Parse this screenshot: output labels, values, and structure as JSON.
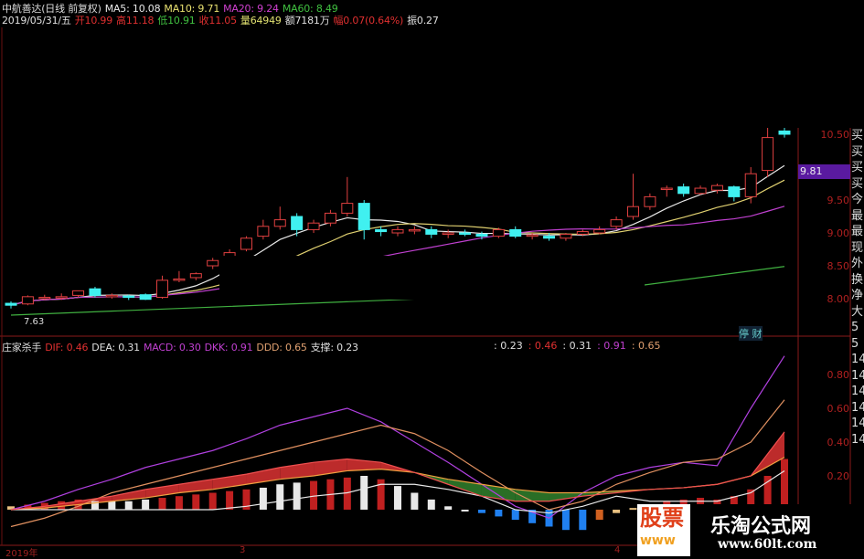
{
  "header": {
    "title": "中航善达(日线 前复权)",
    "ma": [
      {
        "label": "MA5: 10.08",
        "color": "#e8e8e8"
      },
      {
        "label": "MA10: 9.71",
        "color": "#e8e070"
      },
      {
        "label": "MA20: 9.24",
        "color": "#d040d0"
      },
      {
        "label": "MA60: 8.49",
        "color": "#40c040"
      }
    ],
    "quote": [
      {
        "label": "2019/05/31/五",
        "color": "#e0e0e0"
      },
      {
        "label": "开10.99",
        "color": "#e03030"
      },
      {
        "label": "高11.18",
        "color": "#e03030"
      },
      {
        "label": "低10.91",
        "color": "#40c040"
      },
      {
        "label": "收11.05",
        "color": "#e03030"
      },
      {
        "label": "量64949",
        "color": "#e0e070"
      },
      {
        "label": "额7181万",
        "color": "#e0e0e0"
      },
      {
        "label": "幅0.07(0.64%)",
        "color": "#e03030"
      },
      {
        "label": "振0.27",
        "color": "#e0e0e0"
      }
    ]
  },
  "indicator": {
    "name": "庄家杀手",
    "values": [
      {
        "label": "DIF: 0.46",
        "color": "#e03030"
      },
      {
        "label": "DEA: 0.31",
        "color": "#e0e0e0"
      },
      {
        "label": "MACD: 0.30",
        "color": "#c040d0"
      },
      {
        "label": "DKK: 0.91",
        "color": "#c040d0"
      },
      {
        "label": "DDD: 0.65",
        "color": "#e0a070"
      },
      {
        "label": "支撑: 0.23",
        "color": "#e0e0e0"
      }
    ],
    "repeat": [
      {
        "label": ": 0.23",
        "color": "#e0e0e0"
      },
      {
        "label": ": 0.46",
        "color": "#e03030"
      },
      {
        "label": ": 0.31",
        "color": "#e0e0e0"
      },
      {
        "label": ": 0.91",
        "color": "#c040d0"
      },
      {
        "label": ": 0.65",
        "color": "#e0a070"
      }
    ]
  },
  "price_axis": [
    "10.50",
    "9.50",
    "9.00",
    "8.50",
    "8.00"
  ],
  "price_tag": "9.81",
  "low_label": "7.63",
  "cai_label": "停 财",
  "ind_axis": [
    "0.80",
    "0.60",
    "0.40",
    "0.20"
  ],
  "right_column": [
    "买",
    "买",
    "买",
    "买",
    "今",
    "最",
    "最",
    "现",
    "外",
    "换",
    "净",
    "大",
    "5",
    "5",
    "14",
    "14",
    "14",
    "14",
    "14",
    "14"
  ],
  "dates": [
    "2019年",
    "3",
    "4"
  ],
  "watermark": {
    "logo": "股票",
    "logo_sub": "www",
    "name": "乐淘公式网",
    "url": "www.60lt.com"
  },
  "chart_data": {
    "type": "candlestick",
    "ohlc": [
      [
        7.93,
        7.96,
        7.85,
        7.9
      ],
      [
        7.92,
        8.05,
        7.9,
        8.03
      ],
      [
        8.02,
        8.06,
        7.98,
        8.02
      ],
      [
        8.02,
        8.08,
        7.98,
        8.03
      ],
      [
        8.05,
        8.12,
        8.02,
        8.12
      ],
      [
        8.15,
        8.18,
        8.02,
        8.05
      ],
      [
        8.05,
        8.08,
        8.0,
        8.05
      ],
      [
        8.04,
        8.06,
        7.98,
        8.03
      ],
      [
        8.06,
        8.08,
        7.98,
        7.99
      ],
      [
        8.02,
        8.35,
        8.0,
        8.28
      ],
      [
        8.3,
        8.42,
        8.25,
        8.3
      ],
      [
        8.32,
        8.4,
        8.28,
        8.38
      ],
      [
        8.5,
        8.62,
        8.45,
        8.58
      ],
      [
        8.58,
        8.75,
        8.55,
        8.7
      ],
      [
        8.75,
        8.95,
        8.72,
        8.92
      ],
      [
        8.95,
        9.2,
        8.9,
        9.1
      ],
      [
        9.1,
        9.4,
        9.05,
        9.2
      ],
      [
        9.25,
        9.3,
        8.95,
        9.05
      ],
      [
        9.05,
        9.2,
        9.0,
        9.15
      ],
      [
        9.15,
        9.35,
        9.1,
        9.3
      ],
      [
        9.3,
        9.85,
        9.25,
        9.45
      ],
      [
        9.45,
        9.5,
        8.9,
        9.05
      ],
      [
        9.05,
        9.1,
        8.95,
        9.02
      ],
      [
        9.0,
        9.1,
        8.95,
        9.05
      ],
      [
        9.05,
        9.1,
        8.98,
        9.05
      ],
      [
        9.05,
        9.1,
        8.92,
        8.98
      ],
      [
        8.98,
        9.05,
        8.92,
        9.0
      ],
      [
        9.0,
        9.05,
        8.95,
        8.98
      ],
      [
        8.98,
        9.02,
        8.9,
        8.95
      ],
      [
        8.95,
        9.08,
        8.92,
        9.05
      ],
      [
        9.05,
        9.1,
        8.92,
        8.95
      ],
      [
        8.95,
        9.0,
        8.9,
        8.97
      ],
      [
        8.95,
        9.0,
        8.88,
        8.92
      ],
      [
        8.92,
        9.0,
        8.88,
        8.98
      ],
      [
        8.98,
        9.05,
        8.95,
        9.02
      ],
      [
        9.0,
        9.1,
        8.98,
        9.05
      ],
      [
        9.1,
        9.25,
        9.05,
        9.2
      ],
      [
        9.25,
        9.9,
        9.2,
        9.4
      ],
      [
        9.4,
        9.6,
        9.35,
        9.55
      ],
      [
        9.68,
        9.72,
        9.55,
        9.68
      ],
      [
        9.7,
        9.75,
        9.55,
        9.6
      ],
      [
        9.6,
        9.72,
        9.58,
        9.68
      ],
      [
        9.65,
        9.75,
        9.6,
        9.72
      ],
      [
        9.7,
        9.72,
        9.48,
        9.55
      ],
      [
        9.55,
        10.0,
        9.45,
        9.9
      ],
      [
        9.95,
        10.65,
        9.85,
        10.45
      ],
      [
        10.55,
        10.6,
        10.45,
        10.5
      ]
    ],
    "ylim": [
      7.6,
      10.7
    ],
    "indicator": {
      "ylim": [
        -0.15,
        0.95
      ],
      "dkk": [
        0,
        0.05,
        0.12,
        0.18,
        0.25,
        0.3,
        0.35,
        0.42,
        0.5,
        0.55,
        0.6,
        0.52,
        0.4,
        0.28,
        0.15,
        0.02,
        -0.05,
        0.1,
        0.2,
        0.25,
        0.28,
        0.26,
        0.6,
        0.91
      ],
      "dif": [
        0,
        0.02,
        0.05,
        0.08,
        0.12,
        0.15,
        0.18,
        0.21,
        0.25,
        0.28,
        0.3,
        0.28,
        0.22,
        0.15,
        0.08,
        0.05,
        0.05,
        0.08,
        0.1,
        0.12,
        0.13,
        0.15,
        0.2,
        0.46
      ],
      "dea": [
        0,
        0.01,
        0.03,
        0.05,
        0.07,
        0.1,
        0.12,
        0.15,
        0.18,
        0.2,
        0.23,
        0.24,
        0.22,
        0.18,
        0.15,
        0.12,
        0.1,
        0.1,
        0.11,
        0.12,
        0.13,
        0.15,
        0.2,
        0.31
      ],
      "ddd": [
        -0.1,
        -0.05,
        0.02,
        0.1,
        0.15,
        0.2,
        0.25,
        0.3,
        0.35,
        0.4,
        0.45,
        0.5,
        0.45,
        0.35,
        0.22,
        0.1,
        0,
        0.05,
        0.15,
        0.22,
        0.28,
        0.3,
        0.4,
        0.65
      ],
      "support": [
        0,
        0,
        0,
        0,
        0,
        0,
        0,
        0.02,
        0.05,
        0.08,
        0.1,
        0.15,
        0.15,
        0.12,
        0.08,
        0,
        -0.02,
        0.02,
        0.08,
        0.05,
        0.05,
        0.05,
        0.1,
        0.23
      ],
      "bars": [
        0.02,
        0.03,
        0.04,
        0.05,
        0.06,
        0.05,
        0.05,
        0.05,
        0.06,
        0.07,
        0.08,
        0.09,
        0.1,
        0.11,
        0.12,
        0.13,
        0.15,
        0.16,
        0.17,
        0.18,
        0.19,
        0.2,
        0.18,
        0.14,
        0.1,
        0.06,
        0.02,
        0,
        -0.02,
        -0.04,
        -0.06,
        -0.08,
        -0.1,
        -0.12,
        -0.12,
        -0.06,
        -0.02,
        0.01,
        0.03,
        0.05,
        0.06,
        0.07,
        0.06,
        0.08,
        0.12,
        0.2,
        0.3
      ],
      "bar_colors": [
        "#e8c080",
        "#c02020",
        "#c02020",
        "#c02020",
        "#c02020",
        "#e8e8e8",
        "#e8e8e8",
        "#e8e8e8",
        "#e8e8e8",
        "#c02020",
        "#c02020",
        "#c02020",
        "#c02020",
        "#c02020",
        "#c02020",
        "#e8e8e8",
        "#e8e8e8",
        "#e8e8e8",
        "#c02020",
        "#c02020",
        "#c02020",
        "#e8e8e8",
        "#c02020",
        "#e8e8e8",
        "#e8e8e8",
        "#e8e8e8",
        "#e8e8e8",
        "#e8e8e8",
        "#2080f0",
        "#2080f0",
        "#2080f0",
        "#2080f0",
        "#2080f0",
        "#2080f0",
        "#2080f0",
        "#d06020",
        "#e8c080",
        "#e8c080",
        "#c02020",
        "#c02020",
        "#c02020",
        "#c02020",
        "#c02020",
        "#c02020",
        "#c02020",
        "#c02020",
        "#c02020"
      ]
    }
  }
}
